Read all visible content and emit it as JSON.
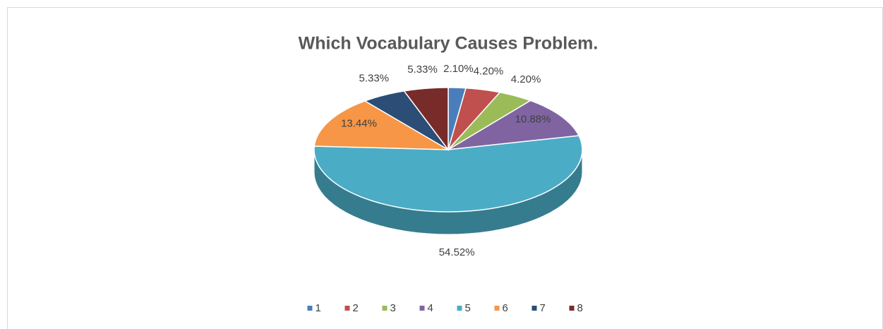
{
  "chart_data": {
    "type": "pie",
    "title": "Which Vocabulary Causes Problem.",
    "categories": [
      "1",
      "2",
      "3",
      "4",
      "5",
      "6",
      "7",
      "8"
    ],
    "values": [
      2.1,
      4.2,
      4.2,
      10.88,
      54.52,
      13.44,
      5.33,
      5.33
    ],
    "value_labels": [
      "2.10%",
      "4.20%",
      "4.20%",
      "10.88%",
      "54.52%",
      "13.44%",
      "5.33%",
      "5.33%"
    ],
    "colors": [
      "#4a7ebb",
      "#c0504d",
      "#9bbb59",
      "#8064a2",
      "#4bacc6",
      "#f79646",
      "#2c4d75",
      "#772c2a"
    ],
    "legend": "bottom"
  }
}
